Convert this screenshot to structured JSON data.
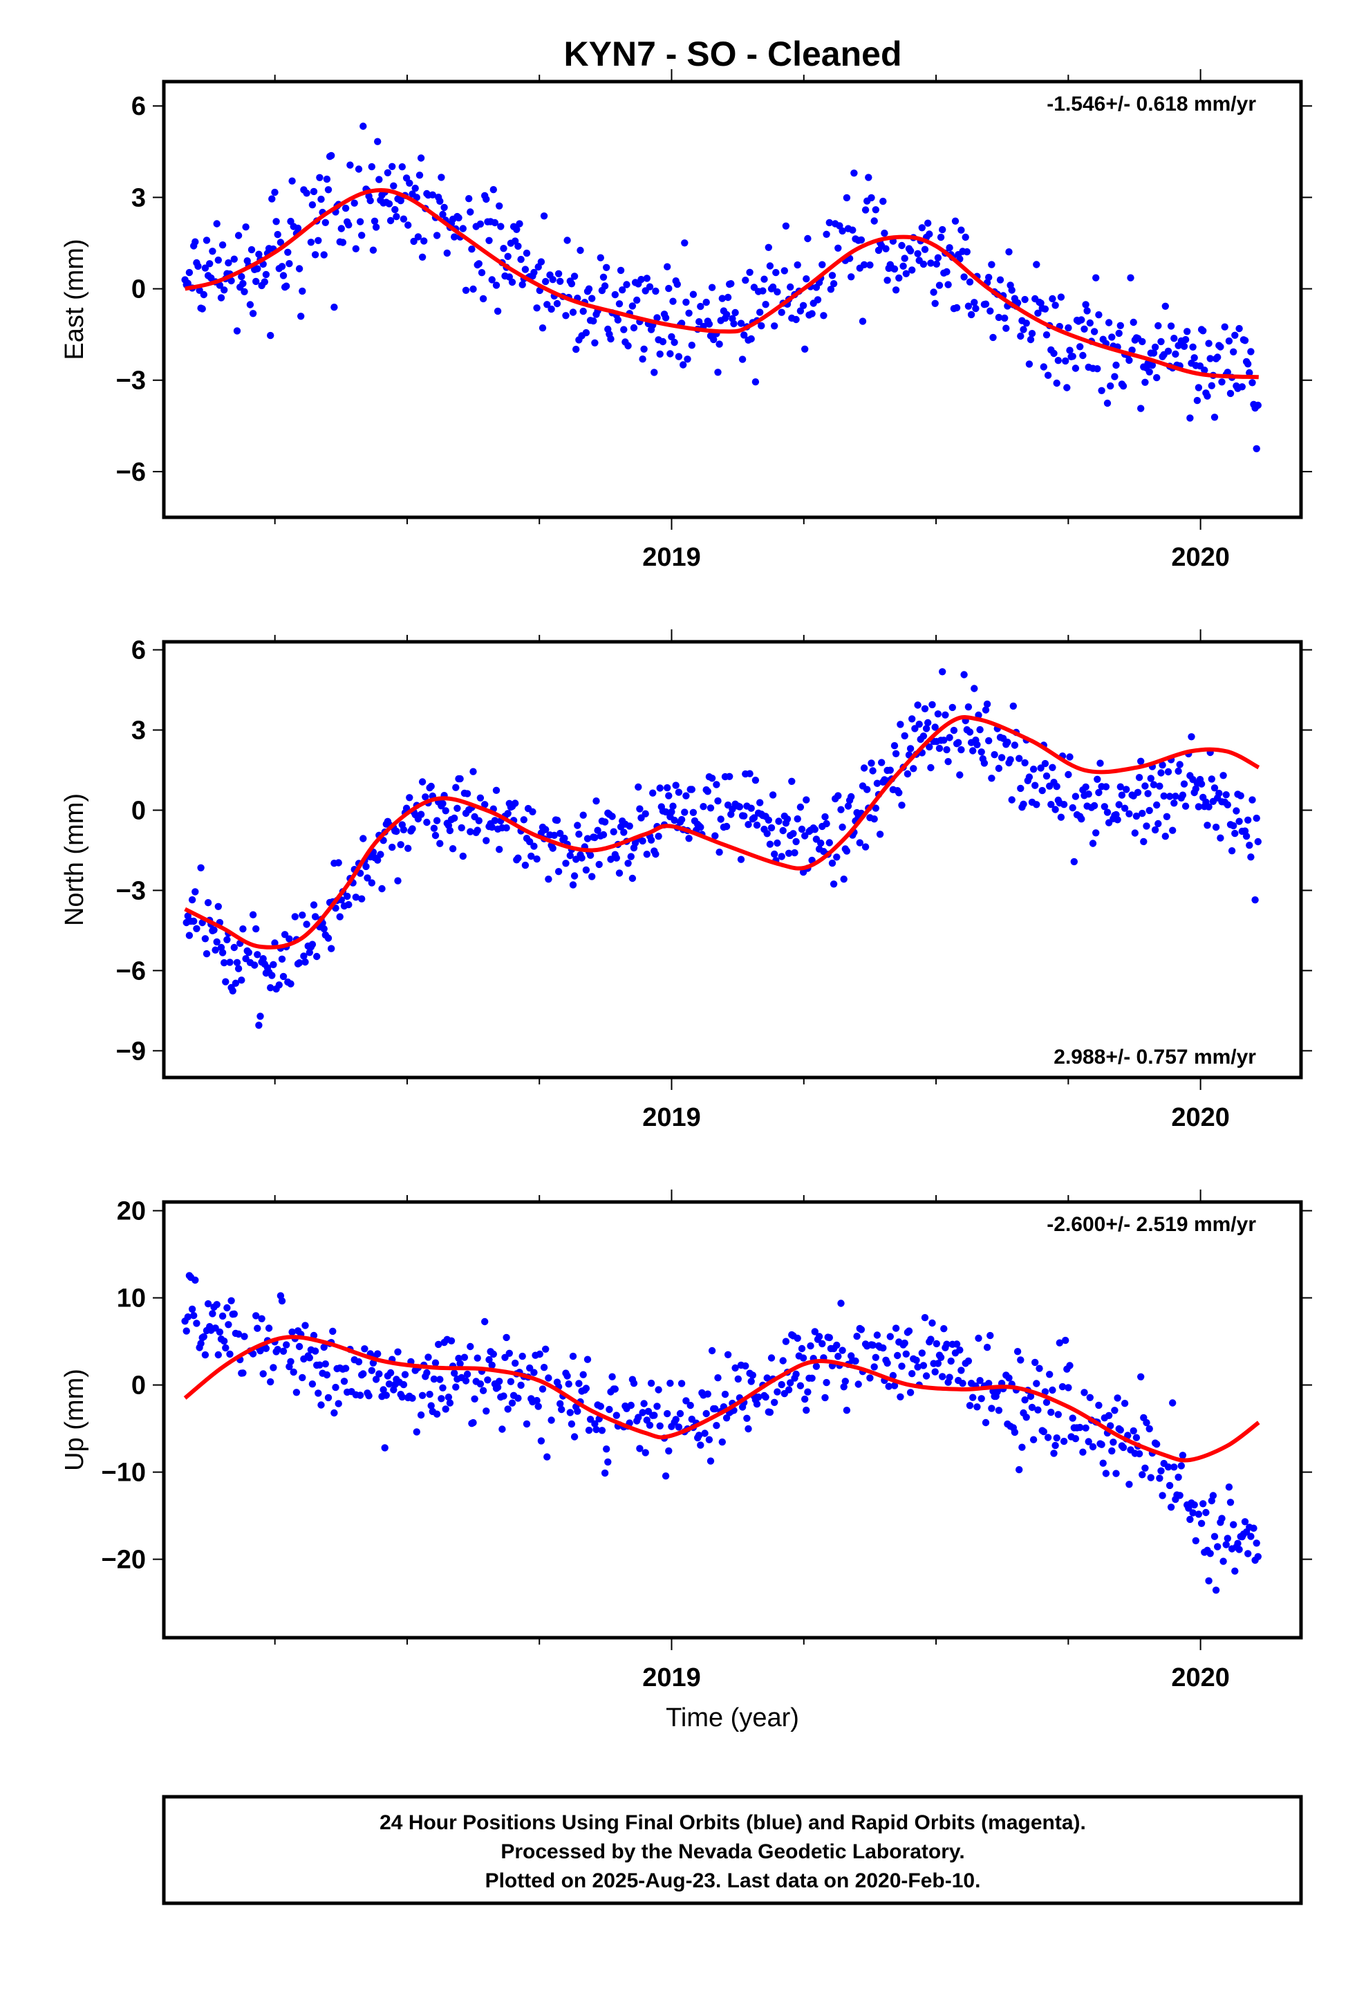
{
  "title": "KYN7  - SO - Cleaned",
  "footer": {
    "line1": "24 Hour Positions Using Final Orbits (blue) and Rapid Orbits (magenta).",
    "line2": "Processed by the Nevada Geodetic Laboratory.",
    "line3": "Plotted on 2025-Aug-23. Last data on 2020-Feb-10."
  },
  "colors": {
    "points": "#0000ff",
    "fit": "#ff0000",
    "frame": "#000000"
  },
  "chart_data": [
    {
      "type": "scatter",
      "ylabel": "East (mm)",
      "xlabel": "",
      "rate": "-1.546+/- 0.618 mm/yr",
      "rate_position": "top-right",
      "xlim": [
        2018.04,
        2020.19
      ],
      "ylim": [
        -7.5,
        6.8
      ],
      "x_ticks": [
        2019,
        2020
      ],
      "x_tick_labels": [
        "2019",
        "2020"
      ],
      "y_ticks": [
        -6,
        -3,
        0,
        3,
        6
      ],
      "y_tick_labels": [
        "−6",
        "−3",
        "0",
        "3",
        "6"
      ],
      "grid": false,
      "series": [
        {
          "kind": "points",
          "trend": [
            [
              2018.08,
              0.3
            ],
            [
              2018.2,
              0.5
            ],
            [
              2018.3,
              1.8
            ],
            [
              2018.4,
              3.0
            ],
            [
              2018.5,
              3.0
            ],
            [
              2018.6,
              2.0
            ],
            [
              2018.7,
              0.8
            ],
            [
              2018.8,
              -0.2
            ],
            [
              2018.9,
              -0.8
            ],
            [
              2019.0,
              -1.2
            ],
            [
              2019.1,
              -1.1
            ],
            [
              2019.2,
              -0.2
            ],
            [
              2019.3,
              1.0
            ],
            [
              2019.4,
              1.7
            ],
            [
              2019.5,
              1.0
            ],
            [
              2019.6,
              -0.3
            ],
            [
              2019.7,
              -1.2
            ],
            [
              2019.8,
              -1.8
            ],
            [
              2019.9,
              -2.2
            ],
            [
              2020.0,
              -2.5
            ],
            [
              2020.11,
              -2.9
            ]
          ],
          "scatter": 1.5
        },
        {
          "kind": "fit",
          "values": [
            [
              2018.08,
              0.0
            ],
            [
              2018.15,
              0.3
            ],
            [
              2018.25,
              1.2
            ],
            [
              2018.35,
              2.5
            ],
            [
              2018.43,
              3.2
            ],
            [
              2018.5,
              3.0
            ],
            [
              2018.6,
              1.8
            ],
            [
              2018.7,
              0.6
            ],
            [
              2018.8,
              -0.3
            ],
            [
              2018.9,
              -0.8
            ],
            [
              2019.0,
              -1.2
            ],
            [
              2019.1,
              -1.4
            ],
            [
              2019.15,
              -1.2
            ],
            [
              2019.25,
              0.0
            ],
            [
              2019.35,
              1.3
            ],
            [
              2019.43,
              1.7
            ],
            [
              2019.5,
              1.4
            ],
            [
              2019.6,
              0.0
            ],
            [
              2019.7,
              -1.1
            ],
            [
              2019.8,
              -1.8
            ],
            [
              2019.9,
              -2.3
            ],
            [
              2020.0,
              -2.8
            ],
            [
              2020.11,
              -2.9
            ]
          ]
        }
      ]
    },
    {
      "type": "scatter",
      "ylabel": "North (mm)",
      "xlabel": "",
      "rate": "2.988+/- 0.757 mm/yr",
      "rate_position": "bottom-right",
      "xlim": [
        2018.04,
        2020.19
      ],
      "ylim": [
        -10.0,
        6.3
      ],
      "x_ticks": [
        2019,
        2020
      ],
      "x_tick_labels": [
        "2019",
        "2020"
      ],
      "y_ticks": [
        -9,
        -6,
        -3,
        0,
        3,
        6
      ],
      "y_tick_labels": [
        "−9",
        "−6",
        "−3",
        "0",
        "3",
        "6"
      ],
      "grid": false,
      "series": [
        {
          "kind": "points",
          "trend": [
            [
              2018.08,
              -3.5
            ],
            [
              2018.15,
              -5.0
            ],
            [
              2018.25,
              -6.0
            ],
            [
              2018.3,
              -5.5
            ],
            [
              2018.4,
              -2.5
            ],
            [
              2018.5,
              -0.5
            ],
            [
              2018.6,
              0.3
            ],
            [
              2018.7,
              -0.5
            ],
            [
              2018.8,
              -1.5
            ],
            [
              2018.9,
              -1.0
            ],
            [
              2019.0,
              -0.3
            ],
            [
              2019.1,
              0.2
            ],
            [
              2019.2,
              -0.8
            ],
            [
              2019.3,
              -1.0
            ],
            [
              2019.4,
              1.0
            ],
            [
              2019.5,
              3.3
            ],
            [
              2019.6,
              2.5
            ],
            [
              2019.7,
              1.0
            ],
            [
              2019.8,
              0.3
            ],
            [
              2019.9,
              0.5
            ],
            [
              2020.0,
              0.8
            ],
            [
              2020.11,
              -1.0
            ]
          ],
          "scatter": 1.3
        },
        {
          "kind": "fit",
          "values": [
            [
              2018.08,
              -3.7
            ],
            [
              2018.15,
              -4.4
            ],
            [
              2018.22,
              -5.1
            ],
            [
              2018.3,
              -4.8
            ],
            [
              2018.38,
              -3.0
            ],
            [
              2018.45,
              -1.0
            ],
            [
              2018.55,
              0.4
            ],
            [
              2018.65,
              0.0
            ],
            [
              2018.75,
              -1.0
            ],
            [
              2018.85,
              -1.5
            ],
            [
              2018.95,
              -0.9
            ],
            [
              2019.0,
              -0.6
            ],
            [
              2019.1,
              -1.3
            ],
            [
              2019.2,
              -2.0
            ],
            [
              2019.26,
              -2.1
            ],
            [
              2019.33,
              -1.0
            ],
            [
              2019.42,
              1.2
            ],
            [
              2019.52,
              3.2
            ],
            [
              2019.58,
              3.4
            ],
            [
              2019.68,
              2.6
            ],
            [
              2019.78,
              1.5
            ],
            [
              2019.88,
              1.6
            ],
            [
              2019.98,
              2.2
            ],
            [
              2020.05,
              2.2
            ],
            [
              2020.11,
              1.6
            ]
          ]
        }
      ]
    },
    {
      "type": "scatter",
      "ylabel": "Up (mm)",
      "xlabel": "Time (year)",
      "rate": "-2.600+/- 2.519 mm/yr",
      "rate_position": "top-right",
      "xlim": [
        2018.04,
        2020.19
      ],
      "ylim": [
        -29,
        21
      ],
      "x_ticks": [
        2019,
        2020
      ],
      "x_tick_labels": [
        "2019",
        "2020"
      ],
      "y_ticks": [
        -20,
        -10,
        0,
        10,
        20
      ],
      "y_tick_labels": [
        "−20",
        "−10",
        "0",
        "10",
        "20"
      ],
      "grid": false,
      "series": [
        {
          "kind": "points",
          "trend": [
            [
              2018.08,
              9.0
            ],
            [
              2018.15,
              7.0
            ],
            [
              2018.25,
              4.0
            ],
            [
              2018.35,
              1.5
            ],
            [
              2018.45,
              0.5
            ],
            [
              2018.55,
              0.5
            ],
            [
              2018.65,
              1.0
            ],
            [
              2018.75,
              0.5
            ],
            [
              2018.85,
              -3.0
            ],
            [
              2018.95,
              -4.5
            ],
            [
              2019.05,
              -3.0
            ],
            [
              2019.15,
              -1.0
            ],
            [
              2019.25,
              3.0
            ],
            [
              2019.35,
              3.5
            ],
            [
              2019.45,
              3.0
            ],
            [
              2019.55,
              2.5
            ],
            [
              2019.65,
              -2.0
            ],
            [
              2019.75,
              -3.0
            ],
            [
              2019.85,
              -6.0
            ],
            [
              2019.95,
              -11.0
            ],
            [
              2020.0,
              -17.0
            ],
            [
              2020.11,
              -19.0
            ]
          ],
          "scatter": 4.5
        },
        {
          "kind": "fit",
          "values": [
            [
              2018.08,
              -1.5
            ],
            [
              2018.15,
              2.0
            ],
            [
              2018.22,
              4.5
            ],
            [
              2018.28,
              5.5
            ],
            [
              2018.35,
              4.8
            ],
            [
              2018.45,
              2.8
            ],
            [
              2018.55,
              2.0
            ],
            [
              2018.65,
              1.8
            ],
            [
              2018.75,
              0.5
            ],
            [
              2018.85,
              -3.0
            ],
            [
              2018.95,
              -5.5
            ],
            [
              2019.0,
              -5.8
            ],
            [
              2019.1,
              -3.0
            ],
            [
              2019.2,
              0.8
            ],
            [
              2019.27,
              2.7
            ],
            [
              2019.35,
              2.0
            ],
            [
              2019.45,
              0.0
            ],
            [
              2019.55,
              -0.5
            ],
            [
              2019.65,
              -0.3
            ],
            [
              2019.75,
              -2.5
            ],
            [
              2019.85,
              -6.0
            ],
            [
              2019.93,
              -8.0
            ],
            [
              2019.98,
              -8.6
            ],
            [
              2020.05,
              -7.0
            ],
            [
              2020.11,
              -4.3
            ]
          ]
        }
      ]
    }
  ]
}
